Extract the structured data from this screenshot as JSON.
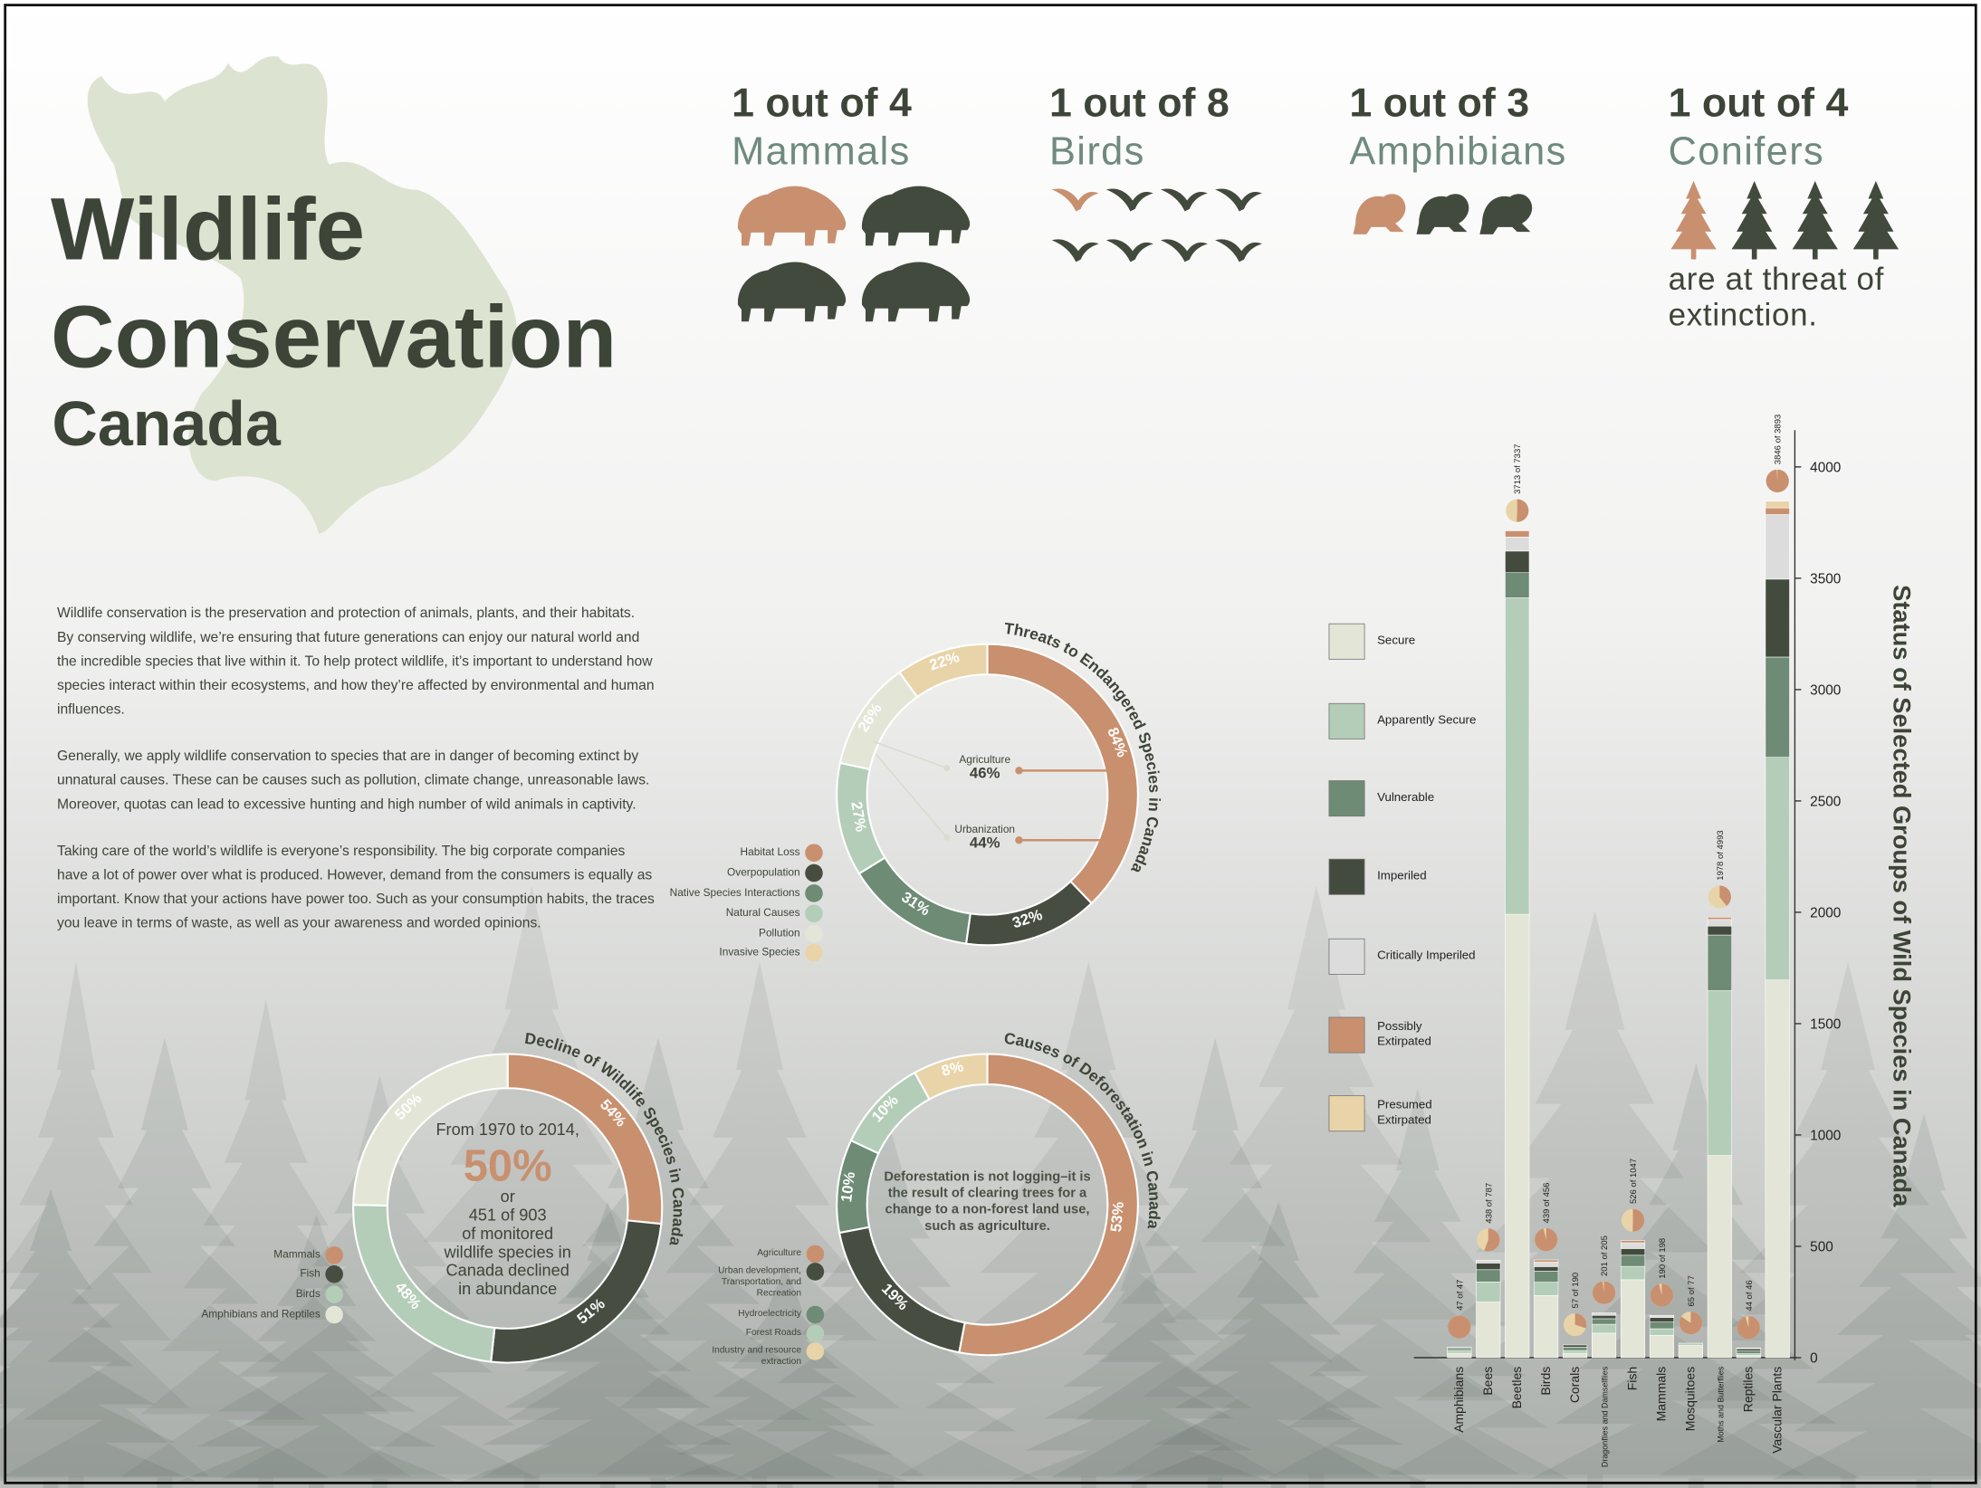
{
  "header": {
    "title_lines": [
      "Wildlife",
      "Conservation",
      "Canada"
    ]
  },
  "threat_stats": {
    "items": [
      {
        "ratio": "1 out of 4",
        "group": "Mammals",
        "threatened": 1,
        "total": 4
      },
      {
        "ratio": "1 out of 8",
        "group": "Birds",
        "threatened": 1,
        "total": 8
      },
      {
        "ratio": "1 out of 3",
        "group": "Amphibians",
        "threatened": 1,
        "total": 3
      },
      {
        "ratio": "1 out of 4",
        "group": "Conifers",
        "threatened": 1,
        "total": 4
      }
    ],
    "caption": "are at threat of extinction."
  },
  "body": {
    "paragraphs": [
      "Wildlife conservation is the preservation and protection of animals, plants, and their habitats. By conserving wildlife, we’re ensuring that future generations can enjoy our natural world and the incredible species that live within it. To help protect wildlife, it’s important to understand how species interact within their ecosystems, and how they’re affected by environmental and human influences.",
      "Generally, we apply wildlife conservation to species that are in danger of becoming extinct by unnatural causes. These can be causes such as pollution, climate change, unreasonable laws. Moreover, quotas can lead to excessive hunting and high number of wild animals in captivity.",
      "Taking care of the world’s wildlife is everyone’s responsibility. The big corporate companies have a lot of power over what is produced. However, demand from the consumers is equally as important. Know that your actions have power too. Such as your consumption habits, the traces you leave in terms of waste, as well as your awareness and worded opinions."
    ]
  },
  "chart_data": [
    {
      "type": "donut",
      "title": "Threats to Endangered Species in Canada",
      "categories": [
        "Habitat Loss",
        "Overpopulation",
        "Native Species Interactions",
        "Natural Causes",
        "Pollution",
        "Invasive Species"
      ],
      "values": [
        84,
        32,
        31,
        27,
        26,
        22
      ],
      "value_labels": [
        "84%",
        "32%",
        "31%",
        "27%",
        "26%",
        "22%"
      ],
      "colors": [
        "#c8906f",
        "#474e41",
        "#6e8b75",
        "#b4cdb8",
        "#e3e6d6",
        "#e8d4a8"
      ],
      "annotations": [
        {
          "label": "Agriculture",
          "value_label": "46%"
        },
        {
          "label": "Urbanization",
          "value_label": "44%"
        }
      ]
    },
    {
      "type": "donut",
      "title": "Decline of Wildlife Species in Canada",
      "categories": [
        "Mammals",
        "Fish",
        "Birds",
        "Amphibians and Reptiles"
      ],
      "values": [
        54,
        51,
        48,
        50
      ],
      "value_labels": [
        "54%",
        "51%",
        "48%",
        "50%"
      ],
      "colors": [
        "#c8906f",
        "#474e41",
        "#b4cdb8",
        "#e3e6d6"
      ],
      "center_text": {
        "intro": "From 1970 to 2014,",
        "highlight": "50%",
        "rest": [
          "or",
          "451 of 903",
          "of monitored",
          "wildlife species in",
          "Canada declined",
          "in abundance"
        ]
      }
    },
    {
      "type": "donut",
      "title": "Causes of Deforestation in Canada",
      "categories": [
        "Agriculture",
        "Urban development, Transportation, and Recreation",
        "Hydroelectricity",
        "Forest Roads",
        "Industry and resource extraction"
      ],
      "values": [
        53,
        19,
        10,
        10,
        8
      ],
      "value_labels": [
        "53%",
        "19%",
        "10%",
        "10%",
        "8%"
      ],
      "colors": [
        "#c8906f",
        "#474e41",
        "#6e8b75",
        "#b4cdb8",
        "#e8d4a8"
      ],
      "center_note": "Deforestation is not logging–it is the result of clearing trees for a change to a non-forest land use, such as agriculture."
    },
    {
      "type": "stacked_bar",
      "title": "Status of Selected Groups of Wild Species in Canada",
      "categories": [
        "Amphibians",
        "Bees",
        "Beetles",
        "Birds",
        "Corals",
        "Dragonflies and Damselflies",
        "Fish",
        "Mammals",
        "Mosquitoes",
        "Moths and Butterflies",
        "Reptiles",
        "Vascular Plants"
      ],
      "series": [
        {
          "name": "Secure",
          "color": "#e3e6d6",
          "values": [
            20,
            250,
            1991,
            279,
            20,
            110,
            350,
            100,
            55,
            908,
            10,
            1696
          ]
        },
        {
          "name": "Apparently Secure",
          "color": "#b4cdb8",
          "values": [
            12,
            90,
            1421,
            60,
            12,
            40,
            60,
            30,
            10,
            740,
            8,
            1000
          ]
        },
        {
          "name": "Vulnerable",
          "color": "#6e8b75",
          "values": [
            8,
            55,
            113,
            50,
            15,
            25,
            50,
            30,
            0,
            250,
            12,
            450
          ]
        },
        {
          "name": "Imperiled",
          "color": "#434b3e",
          "values": [
            5,
            30,
            97,
            20,
            10,
            15,
            30,
            20,
            0,
            40,
            10,
            350
          ]
        },
        {
          "name": "Critically Imperiled",
          "color": "#dcdcdc",
          "values": [
            2,
            13,
            63,
            20,
            0,
            11,
            26,
            10,
            0,
            30,
            4,
            290
          ]
        },
        {
          "name": "Possibly Extirpated",
          "color": "#c8906f",
          "values": [
            0,
            0,
            28,
            10,
            0,
            0,
            10,
            0,
            0,
            10,
            0,
            30
          ]
        },
        {
          "name": "Presumed Extirpated",
          "color": "#e8d4a8",
          "values": [
            0,
            0,
            0,
            0,
            0,
            0,
            0,
            0,
            0,
            0,
            0,
            30
          ]
        }
      ],
      "ratio_labels": [
        "47 of 47",
        "438 of 787",
        "3713 of 7337",
        "439 of 456",
        "57 of 190",
        "201 of 205",
        "526 of 1047",
        "190 of 198",
        "65 of 77",
        "1978 of 4993",
        "44 of 46",
        "3846 of 3893"
      ],
      "ratio_counts": [
        47,
        438,
        3713,
        439,
        57,
        201,
        526,
        190,
        65,
        1978,
        44,
        3846
      ],
      "ratio_totals": [
        47,
        787,
        7337,
        456,
        190,
        205,
        1047,
        198,
        77,
        4993,
        46,
        3893
      ],
      "ylim": [
        0,
        4000
      ],
      "yticks": [
        0,
        500,
        1000,
        1500,
        2000,
        2500,
        3000,
        3500,
        4000
      ]
    }
  ]
}
